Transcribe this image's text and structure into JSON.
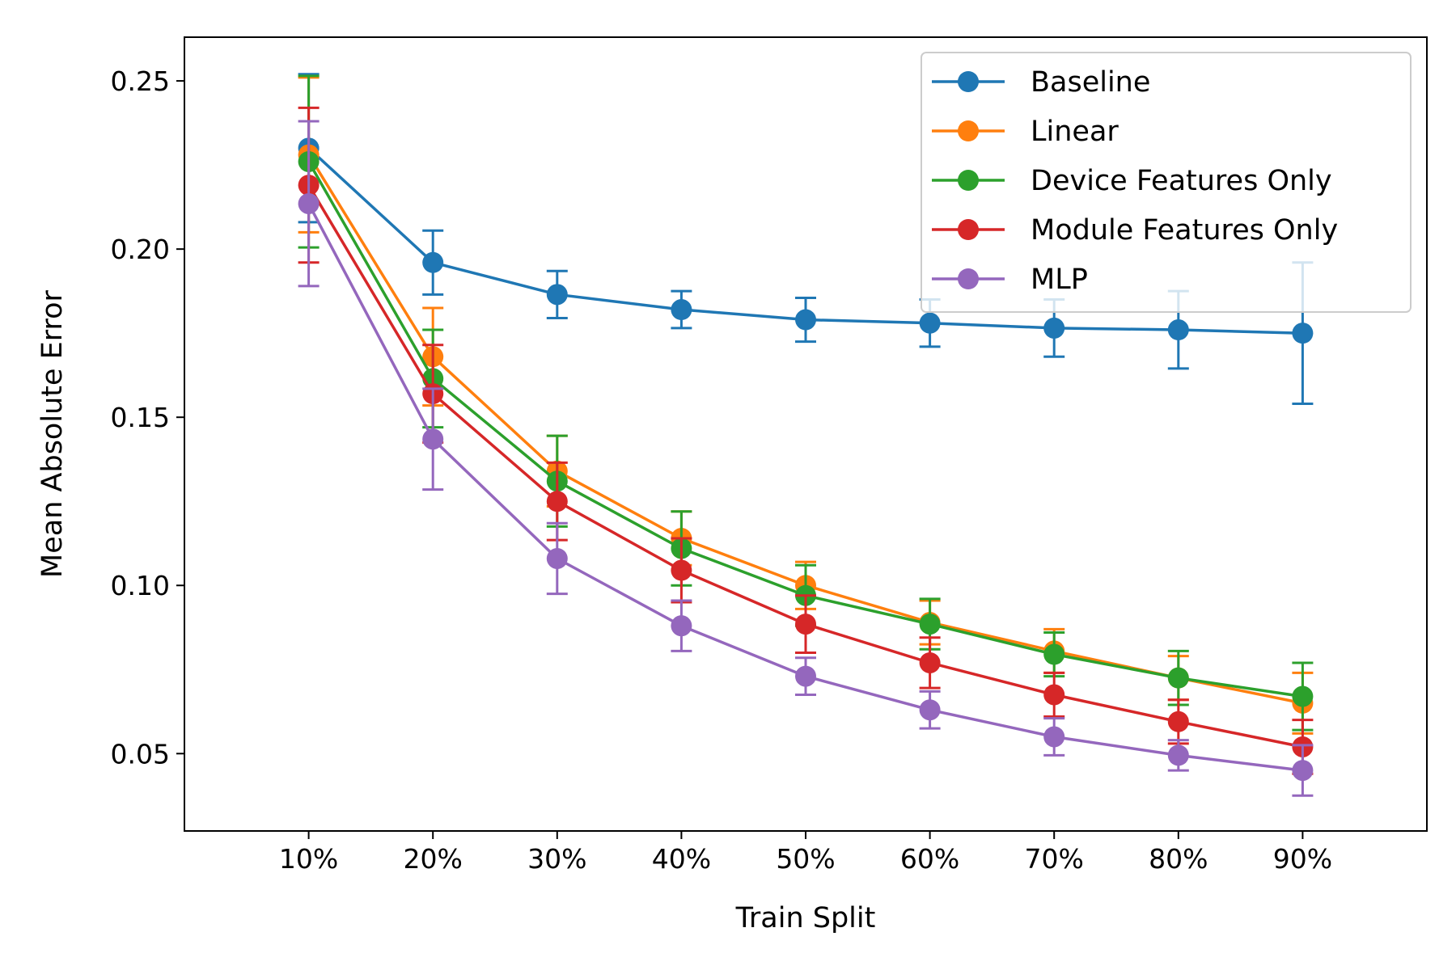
{
  "chart_data": {
    "type": "line",
    "title": "",
    "xlabel": "Train Split",
    "ylabel": "Mean Absolute Error",
    "categories": [
      "10%",
      "20%",
      "30%",
      "40%",
      "50%",
      "60%",
      "70%",
      "80%",
      "90%"
    ],
    "x": [
      0.1,
      0.2,
      0.3,
      0.4,
      0.5,
      0.6,
      0.7,
      0.8,
      0.9
    ],
    "xlim": [
      0.0,
      1.0
    ],
    "ylim": [
      0.027,
      0.263
    ],
    "yticks": [
      0.05,
      0.1,
      0.15,
      0.2,
      0.25
    ],
    "ytick_labels": [
      "0.05",
      "0.10",
      "0.15",
      "0.20",
      "0.25"
    ],
    "grid": false,
    "legend_position": "top-right",
    "error_bars": true,
    "series": [
      {
        "name": "Baseline",
        "color": "#1f77b4",
        "values": [
          0.23,
          0.196,
          0.1865,
          0.182,
          0.179,
          0.178,
          0.1765,
          0.176,
          0.175
        ],
        "errors": [
          0.022,
          0.0095,
          0.007,
          0.0055,
          0.0065,
          0.007,
          0.0085,
          0.0115,
          0.021
        ]
      },
      {
        "name": "Linear",
        "color": "#ff7f0e",
        "values": [
          0.228,
          0.168,
          0.134,
          0.114,
          0.1,
          0.089,
          0.0805,
          0.0725,
          0.065
        ],
        "errors": [
          0.023,
          0.0145,
          0.0105,
          0.008,
          0.007,
          0.0065,
          0.0065,
          0.0065,
          0.009
        ]
      },
      {
        "name": "Device Features Only",
        "color": "#2ca02c",
        "values": [
          0.226,
          0.1615,
          0.131,
          0.111,
          0.097,
          0.0885,
          0.0795,
          0.0725,
          0.067
        ],
        "errors": [
          0.0255,
          0.0145,
          0.0135,
          0.011,
          0.009,
          0.0075,
          0.0065,
          0.008,
          0.01
        ]
      },
      {
        "name": "Module Features Only",
        "color": "#d62728",
        "values": [
          0.219,
          0.157,
          0.125,
          0.1045,
          0.0885,
          0.077,
          0.0675,
          0.0595,
          0.052
        ],
        "errors": [
          0.023,
          0.0145,
          0.0115,
          0.0095,
          0.0085,
          0.0075,
          0.0065,
          0.0065,
          0.008
        ]
      },
      {
        "name": "MLP",
        "color": "#9467bd",
        "values": [
          0.2135,
          0.1435,
          0.108,
          0.088,
          0.073,
          0.063,
          0.055,
          0.0495,
          0.045
        ],
        "errors": [
          0.0245,
          0.015,
          0.0105,
          0.0075,
          0.0055,
          0.0055,
          0.0055,
          0.0045,
          0.0075
        ]
      }
    ]
  }
}
